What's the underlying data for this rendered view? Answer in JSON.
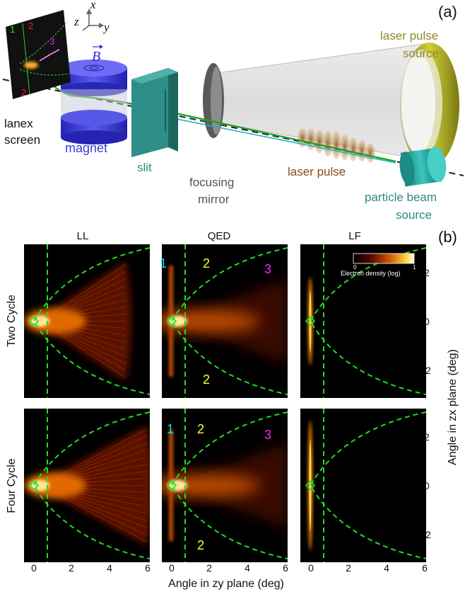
{
  "figure": {
    "panel_a": {
      "label": "(a)",
      "axes": {
        "z": "z",
        "x": "x",
        "y": "y"
      },
      "field_symbol": "B",
      "screen_regions": [
        "1",
        "2",
        "3",
        "2"
      ],
      "labels": {
        "lanex_line1": "lanex",
        "lanex_line2": "screen",
        "magnet": "magnet",
        "slit": "slit",
        "mirror_line1": "focusing",
        "mirror_line2": "mirror",
        "laser_pulse": "laser pulse",
        "laser_source_line1": "laser pulse",
        "laser_source_line2": "source",
        "particle_line1": "particle beam",
        "particle_line2": "source"
      },
      "colors": {
        "magnet": "#3a3ad8",
        "slit": "#2e8a84",
        "laser_pulse_text": "#8a4a1a",
        "laser_source_text": "#8c8a2a",
        "particle_text": "#2e8a84",
        "source_ring": "#a8a81e",
        "particle_cylinder": "#2aa8a0"
      }
    },
    "panel_b": {
      "label": "(b)",
      "columns": [
        "LL",
        "QED",
        "LF"
      ],
      "rows": [
        "Two Cycle",
        "Four Cycle"
      ],
      "colorbar": {
        "min_label": "0",
        "max_label": "1",
        "title": "Electron density (log)"
      },
      "region_labels": [
        {
          "text": "1",
          "color": "#00e5ff"
        },
        {
          "text": "2",
          "color": "#ffff33"
        },
        {
          "text": "3",
          "color": "#ff22ff"
        },
        {
          "text": "2",
          "color": "#ffff33"
        }
      ],
      "x_ticks": [
        "0",
        "2",
        "4",
        "6"
      ],
      "y_ticks": [
        "2",
        "0",
        "−2"
      ],
      "x_label": "Angle in zy plane (deg)",
      "y_label": "Angle in zx plane (deg)",
      "boundary_color": "#22dd22"
    }
  }
}
